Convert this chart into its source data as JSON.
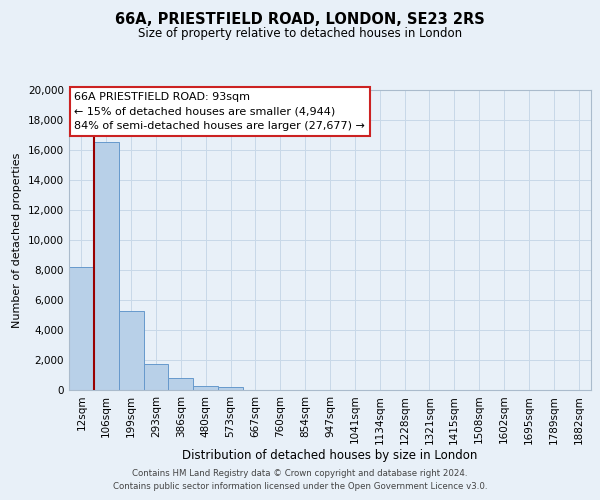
{
  "title": "66A, PRIESTFIELD ROAD, LONDON, SE23 2RS",
  "subtitle": "Size of property relative to detached houses in London",
  "xlabel": "Distribution of detached houses by size in London",
  "ylabel": "Number of detached properties",
  "bin_labels": [
    "12sqm",
    "106sqm",
    "199sqm",
    "293sqm",
    "386sqm",
    "480sqm",
    "573sqm",
    "667sqm",
    "760sqm",
    "854sqm",
    "947sqm",
    "1041sqm",
    "1134sqm",
    "1228sqm",
    "1321sqm",
    "1415sqm",
    "1508sqm",
    "1602sqm",
    "1695sqm",
    "1789sqm",
    "1882sqm"
  ],
  "bar_values": [
    8200,
    16500,
    5300,
    1750,
    780,
    300,
    200,
    0,
    0,
    0,
    0,
    0,
    0,
    0,
    0,
    0,
    0,
    0,
    0,
    0,
    0
  ],
  "bar_color": "#b8d0e8",
  "bar_edge_color": "#6699cc",
  "red_line_bin": 1,
  "red_line_color": "#990000",
  "annotation_line1": "66A PRIESTFIELD ROAD: 93sqm",
  "annotation_line2": "← 15% of detached houses are smaller (4,944)",
  "annotation_line3": "84% of semi-detached houses are larger (27,677) →",
  "annotation_box_color": "#ffffff",
  "annotation_box_edge": "#cc2222",
  "ylim": [
    0,
    20000
  ],
  "yticks": [
    0,
    2000,
    4000,
    6000,
    8000,
    10000,
    12000,
    14000,
    16000,
    18000,
    20000
  ],
  "grid_color": "#c8d8e8",
  "background_color": "#e8f0f8",
  "footer_line1": "Contains HM Land Registry data © Crown copyright and database right 2024.",
  "footer_line2": "Contains public sector information licensed under the Open Government Licence v3.0."
}
